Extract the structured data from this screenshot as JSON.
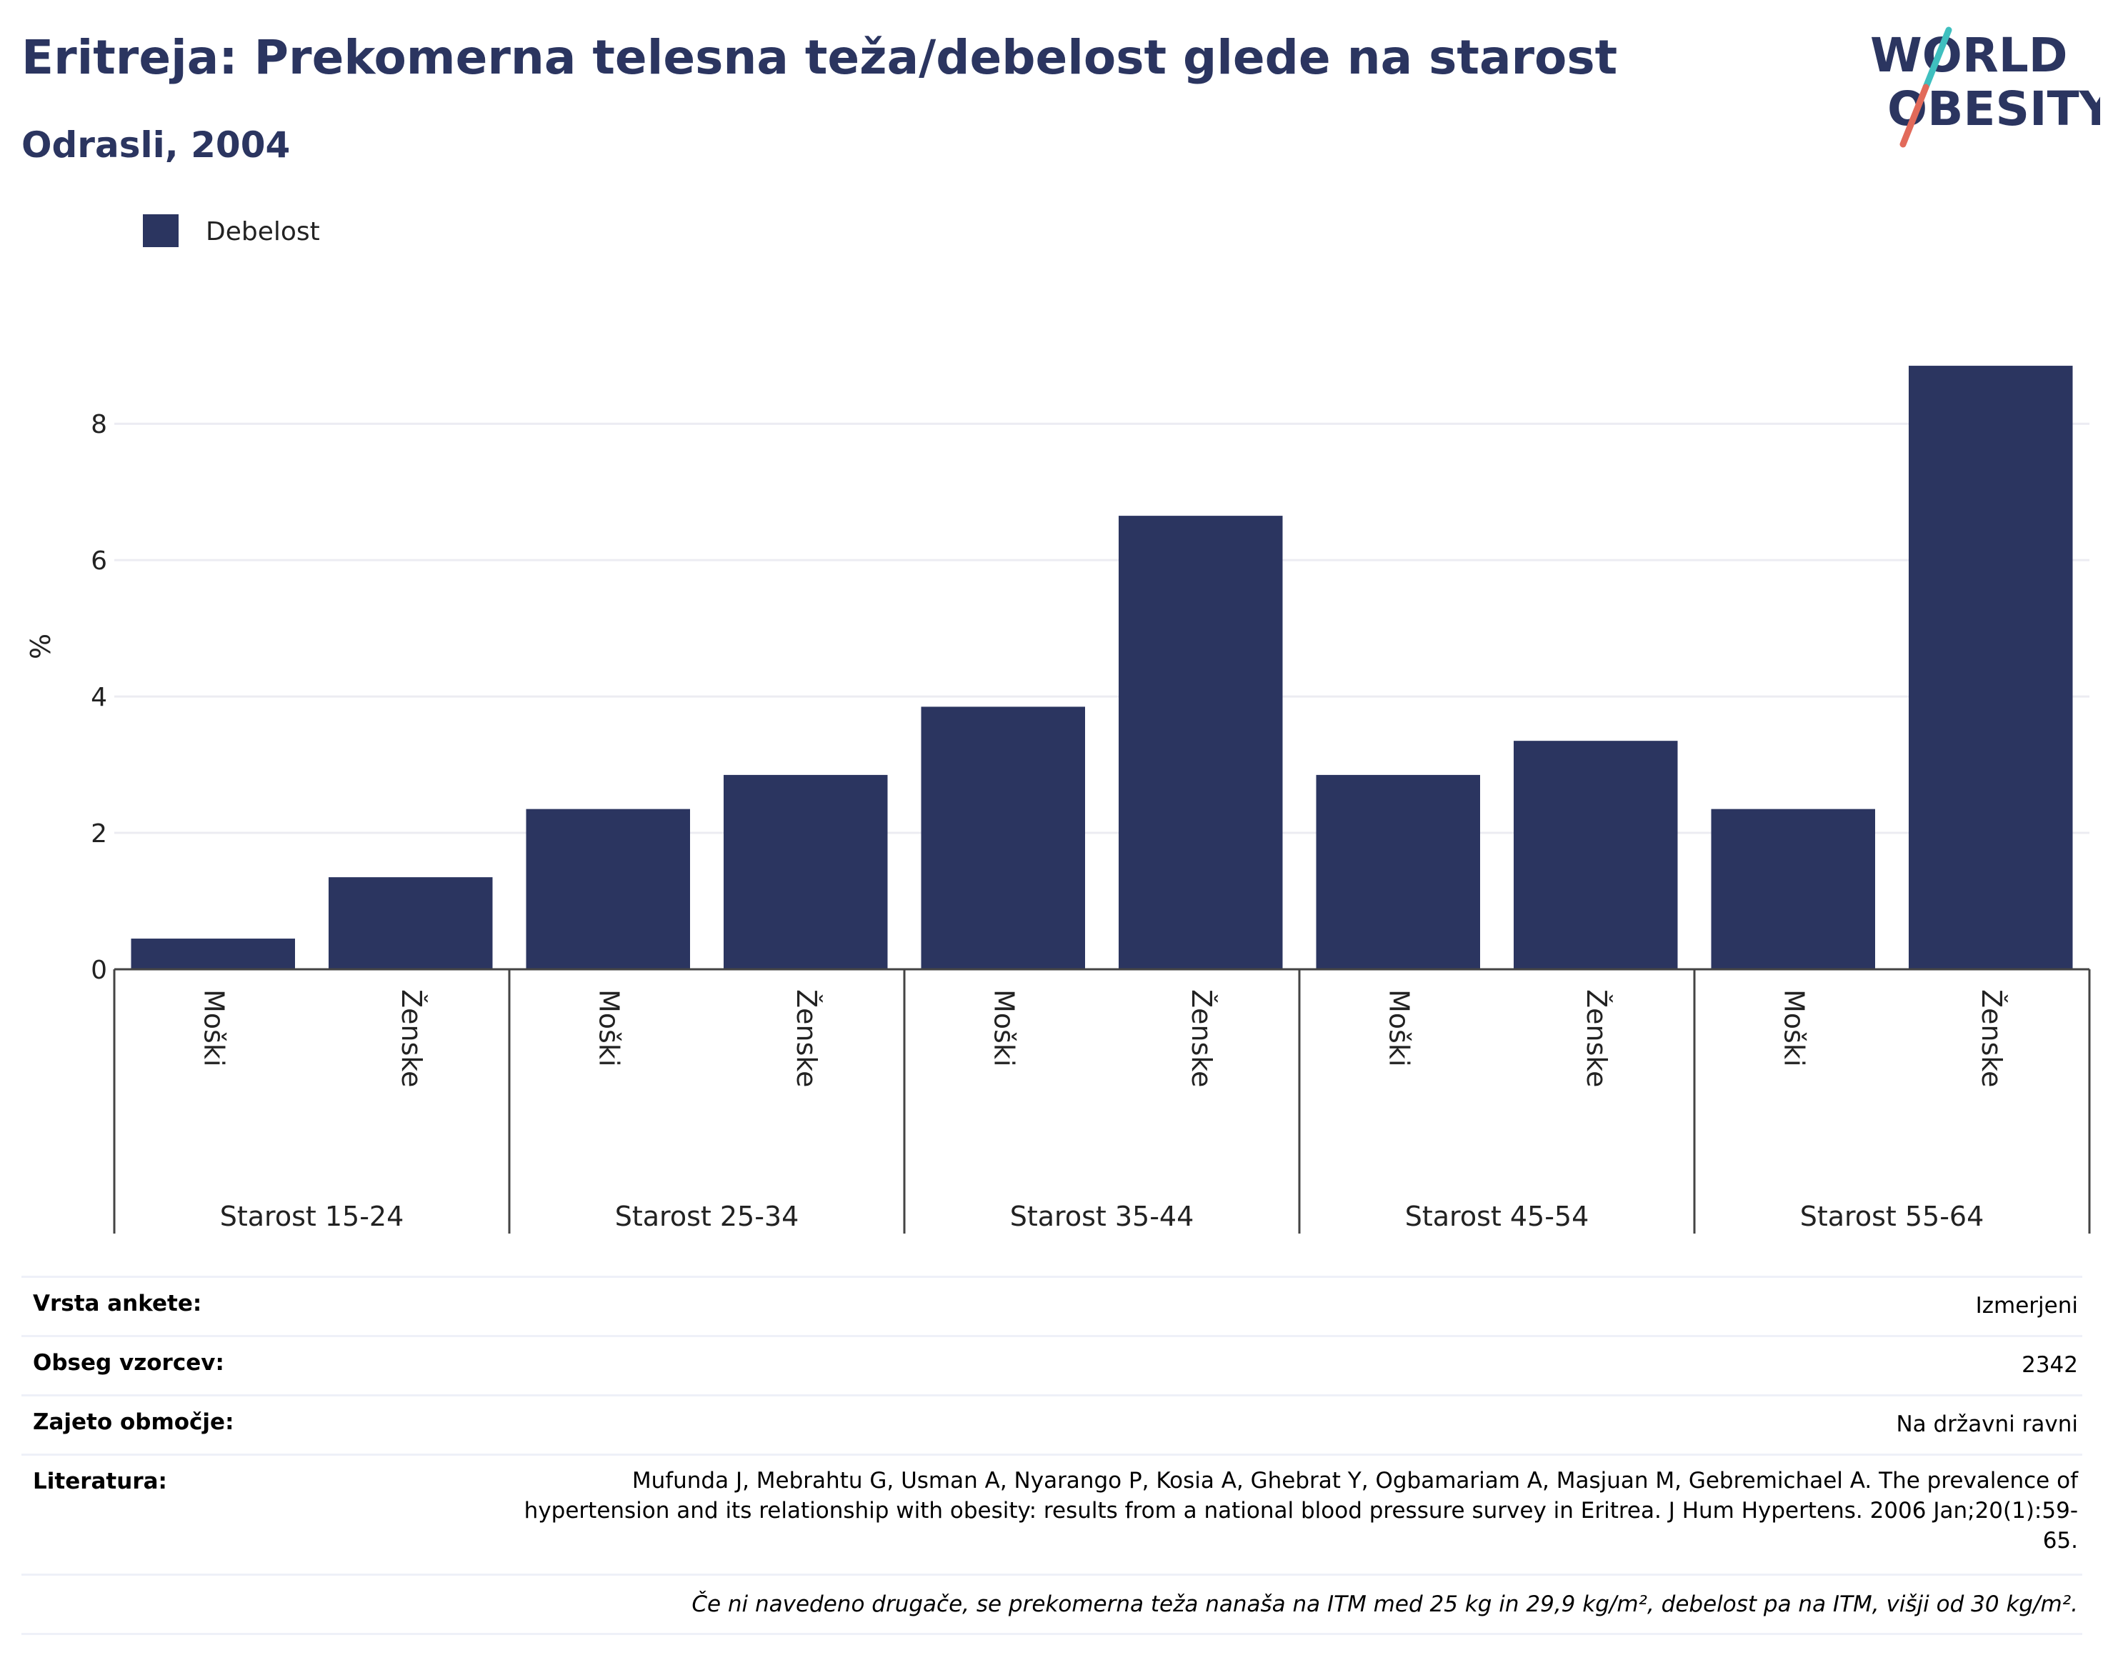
{
  "header": {
    "title": "Eritreja: Prekomerna telesna teža/debelost glede na starost",
    "subtitle": "Odrasli, 2004",
    "logo_line1": "WORLD",
    "logo_line2": "OBESITY"
  },
  "colors": {
    "bar": "#2b3560",
    "title": "#2b3560",
    "logo_slash_top": "#3fbfbf",
    "logo_slash_bottom": "#e26a5a"
  },
  "chart_data": {
    "type": "bar",
    "legend": {
      "label": "Debelost",
      "placement": "top-left"
    },
    "ylabel": "%",
    "ylim": [
      0,
      9.5
    ],
    "yticks": [
      0,
      2,
      4,
      6,
      8
    ],
    "grid": true,
    "groups": [
      {
        "label": "Starost 15-24",
        "categories": [
          "Moški",
          "Ženske"
        ],
        "values": [
          0.45,
          1.35
        ]
      },
      {
        "label": "Starost 25-34",
        "categories": [
          "Moški",
          "Ženske"
        ],
        "values": [
          2.35,
          2.85
        ]
      },
      {
        "label": "Starost 35-44",
        "categories": [
          "Moški",
          "Ženske"
        ],
        "values": [
          3.85,
          6.65
        ]
      },
      {
        "label": "Starost 45-54",
        "categories": [
          "Moški",
          "Ženske"
        ],
        "values": [
          2.85,
          3.35
        ]
      },
      {
        "label": "Starost 55-64",
        "categories": [
          "Moški",
          "Ženske"
        ],
        "values": [
          2.35,
          8.85
        ]
      }
    ]
  },
  "meta": {
    "survey_type_label": "Vrsta ankete:",
    "survey_type_value": "Izmerjeni",
    "sample_size_label": "Obseg vzorcev:",
    "sample_size_value": "2342",
    "coverage_label": "Zajeto območje:",
    "coverage_value": "Na državni ravni",
    "reference_label": "Literatura:",
    "reference_value": "Mufunda J, Mebrahtu G, Usman A, Nyarango P, Kosia A, Ghebrat Y, Ogbamariam A, Masjuan M, Gebremichael A. The prevalence of hypertension and its relationship with obesity: results from a national blood pressure survey in Eritrea. J Hum Hypertens. 2006 Jan;20(1):59-65.",
    "footnote": "Če ni navedeno drugače, se prekomerna teža nanaša na ITM med 25 kg in 29,9 kg/m², debelost pa na ITM, višji od 30 kg/m²."
  }
}
